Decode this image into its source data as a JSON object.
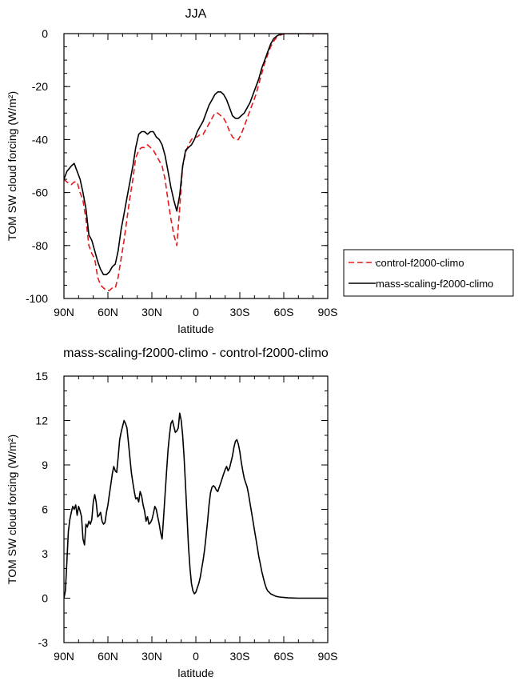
{
  "chart_data": [
    {
      "type": "line",
      "title": "JJA",
      "xlabel": "latitude",
      "ylabel": "TOM SW cloud forcing (W/m²)",
      "xlim": [
        90,
        -90
      ],
      "ylim": [
        -100,
        0
      ],
      "xticks": [
        90,
        60,
        30,
        0,
        -30,
        -60,
        -90
      ],
      "xtick_labels": [
        "90N",
        "60N",
        "30N",
        "0",
        "30S",
        "60S",
        "90S"
      ],
      "yticks": [
        0,
        -20,
        -40,
        -60,
        -80,
        -100
      ],
      "ytick_labels": [
        "0",
        "-20",
        "-40",
        "-60",
        "-80",
        "-100"
      ],
      "legend_position": "right-bottom",
      "series": [
        {
          "name": "control-f2000-climo",
          "color": "#e41a1c",
          "dash": true,
          "x": [
            90,
            88,
            85,
            83,
            81,
            79,
            77,
            75,
            73,
            71,
            69,
            67,
            65,
            63,
            61,
            59,
            57,
            55,
            53,
            51,
            49,
            47,
            45,
            43,
            41,
            39,
            37,
            35,
            33,
            31,
            29,
            27,
            25,
            23,
            21,
            19,
            17,
            15,
            13,
            11,
            9,
            7,
            5,
            3,
            1,
            -1,
            -3,
            -5,
            -7,
            -9,
            -11,
            -13,
            -15,
            -17,
            -19,
            -21,
            -23,
            -25,
            -27,
            -29,
            -31,
            -33,
            -35,
            -37,
            -39,
            -41,
            -43,
            -45,
            -47,
            -49,
            -51,
            -53,
            -55,
            -57,
            -59,
            -61,
            -63,
            -65,
            -67,
            -70,
            -75,
            -80,
            -85,
            -90
          ],
          "y": [
            -55,
            -56,
            -57,
            -56,
            -56,
            -60,
            -63,
            -70,
            -80,
            -83,
            -85,
            -92,
            -95,
            -96,
            -97,
            -97,
            -96,
            -96,
            -92,
            -85,
            -78,
            -70,
            -62,
            -55,
            -47,
            -44,
            -43,
            -43,
            -42,
            -43,
            -44,
            -46,
            -48,
            -50,
            -55,
            -63,
            -70,
            -76,
            -80,
            -66,
            -50,
            -45,
            -42,
            -40,
            -39,
            -39,
            -38,
            -38,
            -36,
            -34,
            -32,
            -30,
            -30,
            -31,
            -32,
            -34,
            -37,
            -39,
            -40,
            -40,
            -38,
            -35,
            -32,
            -29,
            -26,
            -23,
            -19,
            -15,
            -11,
            -8,
            -5,
            -3,
            -1.5,
            -0.7,
            -0.3,
            -0.1,
            0,
            0,
            0,
            0,
            0,
            0,
            0,
            0
          ]
        },
        {
          "name": "mass-scaling-f2000-climo",
          "color": "#000000",
          "dash": false,
          "x": [
            90,
            88,
            85,
            83,
            81,
            79,
            77,
            75,
            73,
            71,
            69,
            67,
            65,
            63,
            61,
            59,
            57,
            55,
            53,
            51,
            49,
            47,
            45,
            43,
            41,
            39,
            37,
            35,
            33,
            31,
            29,
            27,
            25,
            23,
            21,
            19,
            17,
            15,
            13,
            11,
            9,
            7,
            5,
            3,
            1,
            -1,
            -3,
            -5,
            -7,
            -9,
            -11,
            -13,
            -15,
            -17,
            -19,
            -21,
            -23,
            -25,
            -27,
            -29,
            -31,
            -33,
            -35,
            -37,
            -39,
            -41,
            -43,
            -45,
            -47,
            -49,
            -51,
            -53,
            -55,
            -57,
            -59,
            -61,
            -63,
            -65,
            -67,
            -70,
            -75,
            -80,
            -85,
            -90
          ],
          "y": [
            -55,
            -52,
            -50,
            -49,
            -52,
            -55,
            -60,
            -66,
            -76,
            -78,
            -82,
            -86,
            -89,
            -91,
            -91,
            -90,
            -88,
            -87,
            -82,
            -74,
            -68,
            -62,
            -56,
            -50,
            -43,
            -38,
            -37,
            -37,
            -38,
            -37,
            -37,
            -39,
            -40,
            -42,
            -46,
            -52,
            -58,
            -63,
            -67,
            -61,
            -50,
            -44,
            -43,
            -42,
            -40,
            -37,
            -35,
            -33,
            -30,
            -27,
            -25,
            -23,
            -22,
            -22,
            -23,
            -25,
            -28,
            -31,
            -32,
            -32,
            -31,
            -30,
            -28,
            -26,
            -23,
            -20,
            -17,
            -13,
            -10,
            -7,
            -4,
            -2,
            -1,
            -0.4,
            -0.1,
            0,
            0,
            0,
            0,
            0,
            0,
            0,
            0,
            0
          ]
        }
      ]
    },
    {
      "type": "line",
      "title": "mass-scaling-f2000-climo - control-f2000-climo",
      "xlabel": "latitude",
      "ylabel": "TOM SW cloud forcing (W/m²)",
      "xlim": [
        90,
        -90
      ],
      "ylim": [
        -3,
        15
      ],
      "xticks": [
        90,
        60,
        30,
        0,
        -30,
        -60,
        -90
      ],
      "xtick_labels": [
        "90N",
        "60N",
        "30N",
        "0",
        "30S",
        "60S",
        "90S"
      ],
      "yticks": [
        15,
        12,
        9,
        6,
        3,
        0,
        -3
      ],
      "ytick_labels": [
        "15",
        "12",
        "9",
        "6",
        "3",
        "0",
        "-3"
      ],
      "series": [
        {
          "color": "#000000",
          "dash": false,
          "x": [
            90,
            89,
            88,
            87,
            86,
            85,
            84,
            83,
            82,
            81,
            80,
            79,
            78,
            77,
            76,
            75,
            74,
            73,
            72,
            71,
            70,
            69,
            68,
            67,
            66,
            65,
            64,
            63,
            62,
            61,
            60,
            59,
            58,
            57,
            56,
            55,
            54,
            53,
            52,
            51,
            50,
            49,
            48,
            47,
            46,
            45,
            44,
            43,
            42,
            41,
            40,
            39,
            38,
            37,
            36,
            35,
            34,
            33,
            32,
            31,
            30,
            29,
            28,
            27,
            26,
            25,
            24,
            23,
            22,
            21,
            20,
            19,
            18,
            17,
            16,
            15,
            14,
            13,
            12,
            11,
            10,
            9,
            8,
            7,
            6,
            5,
            4,
            3,
            2,
            1,
            0,
            -1,
            -2,
            -3,
            -4,
            -5,
            -6,
            -7,
            -8,
            -9,
            -10,
            -11,
            -12,
            -13,
            -14,
            -15,
            -16,
            -17,
            -18,
            -19,
            -20,
            -21,
            -22,
            -23,
            -24,
            -25,
            -26,
            -27,
            -28,
            -29,
            -30,
            -31,
            -32,
            -33,
            -34,
            -35,
            -36,
            -37,
            -38,
            -39,
            -40,
            -41,
            -42,
            -43,
            -44,
            -45,
            -46,
            -47,
            -48,
            -49,
            -50,
            -51,
            -52,
            -53,
            -54,
            -55,
            -57,
            -60,
            -63,
            -66,
            -70,
            -75,
            -80,
            -85,
            -90
          ],
          "y": [
            0,
            0.5,
            2.5,
            4.5,
            5.3,
            5.8,
            6.2,
            6.0,
            6.3,
            5.6,
            6.2,
            5.9,
            5.5,
            4.0,
            3.6,
            5.0,
            4.8,
            5.2,
            5.0,
            5.3,
            6.5,
            7.0,
            6.5,
            5.5,
            5.6,
            5.8,
            5.2,
            5.0,
            5.1,
            5.8,
            6.3,
            7.0,
            7.7,
            8.4,
            8.9,
            8.6,
            8.5,
            9.5,
            10.7,
            11.2,
            11.6,
            12.0,
            11.8,
            11.5,
            10.5,
            9.5,
            8.5,
            7.8,
            7.2,
            6.7,
            6.8,
            6.5,
            7.2,
            6.9,
            6.3,
            5.9,
            5.2,
            5.5,
            5.0,
            5.1,
            5.3,
            5.7,
            6.2,
            6.0,
            5.5,
            5.0,
            4.4,
            4.0,
            5.5,
            7.0,
            8.5,
            10.0,
            11.0,
            11.8,
            12.0,
            11.6,
            11.2,
            11.3,
            11.5,
            12.5,
            12.0,
            11.0,
            9.5,
            7.5,
            5.5,
            3.5,
            2.0,
            1.0,
            0.5,
            0.3,
            0.4,
            0.7,
            1.0,
            1.4,
            2.0,
            2.6,
            3.3,
            4.2,
            5.2,
            6.3,
            7.1,
            7.5,
            7.6,
            7.5,
            7.3,
            7.2,
            7.5,
            7.8,
            8.1,
            8.4,
            8.7,
            8.9,
            8.6,
            8.8,
            9.2,
            9.6,
            10.2,
            10.6,
            10.7,
            10.4,
            9.9,
            9.2,
            8.6,
            8.1,
            7.8,
            7.5,
            7.0,
            6.4,
            5.8,
            5.2,
            4.6,
            4.0,
            3.4,
            2.8,
            2.3,
            1.8,
            1.4,
            1.0,
            0.7,
            0.5,
            0.4,
            0.3,
            0.25,
            0.2,
            0.15,
            0.12,
            0.08,
            0.05,
            0.02,
            0.01,
            0,
            0,
            0,
            0,
            0
          ]
        }
      ]
    }
  ]
}
